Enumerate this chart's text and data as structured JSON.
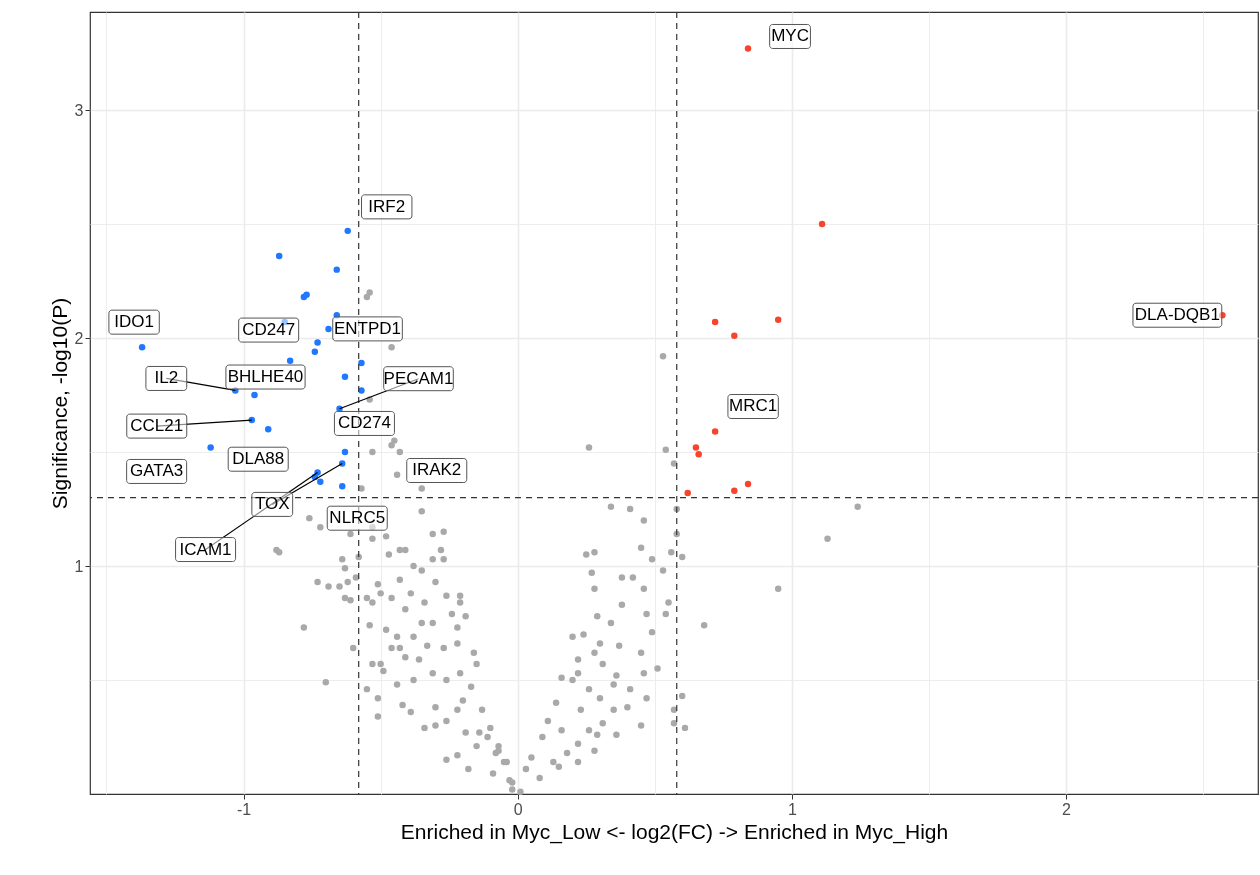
{
  "chart_data": {
    "type": "scatter",
    "xlabel": "Enriched in Myc_Low <- log2(FC) -> Enriched in Myc_High",
    "ylabel": "Significance, -log10(P)",
    "xlim": [
      -1.56,
      2.7
    ],
    "ylim": [
      0,
      3.43
    ],
    "xticks": [
      {
        "value": -1.5,
        "label": null
      },
      -1,
      {
        "value": -0.5,
        "label": null
      },
      0,
      {
        "value": 0.5,
        "label": null
      },
      1,
      {
        "value": 1.5,
        "label": null
      },
      2,
      {
        "value": 2.5,
        "label": null
      }
    ],
    "yticks": [
      {
        "value": 0.5,
        "label": null
      },
      1,
      {
        "value": 1.5,
        "label": null
      },
      2,
      {
        "value": 2.5,
        "label": null
      },
      3
    ],
    "grid": true,
    "marker": "circle",
    "series": [
      {
        "color": "#a9a9a9",
        "x": [
          0.53,
          0.54,
          0.57,
          0.58,
          0.46,
          0.58,
          0.45,
          0.56,
          0.6,
          0.49,
          0.53,
          1.24,
          1.13,
          0.95,
          0.55,
          0.54,
          0.26,
          0.34,
          0.41,
          0.25,
          0.28,
          0.27,
          0.42,
          0.28,
          0.38,
          0.46,
          0.38,
          0.29,
          0.47,
          0.2,
          0.24,
          0.34,
          0.49,
          0.68,
          0.3,
          0.37,
          0.22,
          0.28,
          0.45,
          0.16,
          0.22,
          0.31,
          0.36,
          0.46,
          0.51,
          0.2,
          0.26,
          0.3,
          0.35,
          0.41,
          0.47,
          0.6,
          0.14,
          0.23,
          0.35,
          0.4,
          0.57,
          0.31,
          0.45,
          0.57,
          0.61,
          0.36,
          0.11,
          0.16,
          0.26,
          0.29,
          0.09,
          0.22,
          0.28,
          0.22,
          0.05,
          0.13,
          0.03,
          -0.04,
          -0.07,
          -0.02,
          0.01,
          0.08,
          0.15,
          0.18,
          -0.31,
          -0.27,
          -0.43,
          -0.41,
          -0.28,
          -0.47,
          -0.53,
          -0.61,
          -0.64,
          -0.63,
          -0.59,
          -0.73,
          -0.69,
          -0.65,
          -0.62,
          -0.51,
          -0.5,
          -0.46,
          -0.63,
          -0.61,
          -0.55,
          -0.53,
          -0.39,
          -0.43,
          -0.38,
          -0.35,
          -0.31,
          -0.3,
          -0.26,
          -0.21,
          -0.21,
          -0.78,
          -0.54,
          -0.48,
          -0.41,
          -0.34,
          -0.35,
          -0.31,
          -0.24,
          -0.19,
          -0.22,
          -0.6,
          -0.53,
          -0.5,
          -0.49,
          -0.46,
          -0.43,
          -0.44,
          -0.41,
          -0.38,
          -0.33,
          -0.36,
          -0.27,
          -0.22,
          -0.16,
          -0.15,
          -0.7,
          -0.55,
          -0.51,
          -0.51,
          -0.44,
          -0.38,
          -0.31,
          -0.26,
          -0.21,
          -0.17,
          -0.42,
          -0.39,
          -0.34,
          -0.3,
          -0.26,
          -0.3,
          -0.22,
          -0.2,
          -0.13,
          -0.1,
          -0.26,
          -0.22,
          -0.18,
          -0.15,
          -0.11,
          -0.08,
          -0.05,
          -0.07,
          -0.14,
          -0.19,
          -0.03,
          -0.09,
          -0.02,
          -0.54,
          -0.55,
          -0.46,
          -0.54,
          -0.53,
          -0.46,
          -0.43,
          -0.44,
          -0.35,
          -0.35,
          -0.57,
          -0.76,
          -0.72,
          -0.53,
          -0.48,
          -0.58,
          -0.27,
          -0.88,
          -0.87,
          -0.45
        ],
        "values": [
          1.92,
          1.51,
          1.45,
          1.25,
          1.2,
          1.14,
          1.08,
          1.06,
          1.04,
          1.03,
          0.98,
          1.26,
          1.12,
          0.9,
          0.84,
          0.79,
          1.52,
          1.26,
          1.25,
          1.05,
          1.06,
          0.97,
          0.95,
          0.9,
          0.95,
          0.9,
          0.83,
          0.78,
          0.79,
          0.69,
          0.7,
          0.75,
          0.71,
          0.74,
          0.66,
          0.65,
          0.59,
          0.62,
          0.62,
          0.51,
          0.53,
          0.57,
          0.52,
          0.53,
          0.55,
          0.5,
          0.46,
          0.42,
          0.48,
          0.46,
          0.42,
          0.43,
          0.4,
          0.37,
          0.37,
          0.38,
          0.37,
          0.31,
          0.3,
          0.31,
          0.29,
          0.26,
          0.32,
          0.28,
          0.28,
          0.26,
          0.25,
          0.22,
          0.19,
          0.14,
          0.16,
          0.14,
          0.11,
          0.14,
          0.19,
          0.05,
          0.01,
          0.07,
          0.12,
          0.18,
          1.14,
          1.15,
          1.07,
          1.07,
          1.07,
          1.05,
          1.12,
          1.14,
          1.03,
          0.99,
          0.95,
          0.93,
          0.91,
          0.91,
          0.93,
          0.92,
          0.88,
          0.86,
          0.86,
          0.85,
          0.86,
          0.84,
          0.88,
          0.94,
          1.0,
          0.98,
          1.03,
          0.93,
          0.87,
          0.87,
          0.84,
          0.73,
          0.74,
          0.72,
          0.81,
          0.84,
          0.75,
          0.75,
          0.79,
          0.78,
          0.73,
          0.64,
          0.57,
          0.57,
          0.54,
          0.64,
          0.64,
          0.69,
          0.6,
          0.69,
          0.65,
          0.59,
          0.64,
          0.66,
          0.62,
          0.57,
          0.49,
          0.46,
          0.42,
          0.34,
          0.48,
          0.5,
          0.53,
          0.5,
          0.53,
          0.47,
          0.39,
          0.36,
          0.29,
          0.3,
          0.32,
          0.38,
          0.37,
          0.41,
          0.37,
          0.29,
          0.15,
          0.17,
          0.11,
          0.21,
          0.25,
          0.18,
          0.14,
          0.21,
          0.27,
          0.27,
          0.06,
          0.09,
          0.02,
          2.2,
          2.18,
          1.96,
          1.73,
          1.5,
          1.53,
          1.5,
          1.4,
          1.34,
          1.24,
          1.34,
          1.21,
          1.17,
          1.17,
          1.13,
          1.04,
          1.03,
          1.07,
          1.06,
          1.55
        ]
      },
      {
        "color": "#1f78ff",
        "x": [
          -0.62,
          -0.87,
          -0.66,
          -0.78,
          -0.77,
          -0.66,
          -0.69,
          -0.73,
          -0.74,
          -0.83,
          -0.57,
          -0.63,
          -1.37,
          -1.03,
          -0.96,
          -0.57,
          -0.65,
          -0.97,
          -0.91,
          -1.12,
          -0.63,
          -0.64,
          -0.73,
          -0.74,
          -0.72,
          -0.64,
          -0.85
        ],
        "values": [
          2.47,
          2.36,
          2.3,
          2.18,
          2.19,
          2.1,
          2.04,
          1.98,
          1.94,
          1.9,
          1.89,
          1.83,
          1.96,
          1.77,
          1.75,
          1.77,
          1.69,
          1.64,
          1.6,
          1.52,
          1.5,
          1.45,
          1.41,
          1.39,
          1.37,
          1.35,
          2.07
        ]
      },
      {
        "color": "#f8432d",
        "x": [
          0.84,
          1.11,
          0.72,
          0.79,
          0.95,
          0.72,
          0.65,
          0.66,
          0.62,
          0.79,
          0.84,
          2.57
        ],
        "values": [
          3.27,
          2.5,
          2.07,
          2.01,
          2.08,
          1.59,
          1.52,
          1.49,
          1.32,
          1.33,
          1.36,
          2.1
        ]
      }
    ],
    "ref_lines": [
      {
        "axis": "x",
        "value": -0.58,
        "color": "#333333",
        "line_style": "dashed"
      },
      {
        "axis": "x",
        "value": 0.58,
        "color": "#333333",
        "line_style": "dashed"
      },
      {
        "axis": "y",
        "value": 1.3,
        "color": "#333333",
        "line_style": "dashed"
      }
    ],
    "annotations": [
      {
        "text": "MYC",
        "x": 0.84,
        "y": 3.27
      },
      {
        "text": "IRF2",
        "x": -0.62,
        "y": 2.47
      },
      {
        "text": "IDO1",
        "x": -1.37,
        "y": 1.96
      },
      {
        "text": "CD247",
        "x": -0.85,
        "y": 2.07
      },
      {
        "text": "ENTPD1",
        "x": -0.69,
        "y": 2.04
      },
      {
        "text": "IL2",
        "x": -1.03,
        "y": 1.77
      },
      {
        "text": "BHLHE40",
        "x": -0.96,
        "y": 1.75
      },
      {
        "text": "PECAM1",
        "x": -0.65,
        "y": 1.69
      },
      {
        "text": "CCL21",
        "x": -0.97,
        "y": 1.64
      },
      {
        "text": "CD274",
        "x": -0.57,
        "y": 1.77
      },
      {
        "text": "DLA88",
        "x": -0.91,
        "y": 1.6
      },
      {
        "text": "GATA3",
        "x": -1.12,
        "y": 1.52
      },
      {
        "text": "IRAK2",
        "x": -0.35,
        "y": 1.34
      },
      {
        "text": "TOX",
        "x": -0.64,
        "y": 1.45
      },
      {
        "text": "NLRC5",
        "x": -0.64,
        "y": 1.35
      },
      {
        "text": "ICAM1",
        "x": -0.73,
        "y": 1.41
      },
      {
        "text": "MRC1",
        "x": 0.72,
        "y": 1.59
      },
      {
        "text": "DLA-DQB1",
        "x": 2.57,
        "y": 2.1
      }
    ]
  }
}
